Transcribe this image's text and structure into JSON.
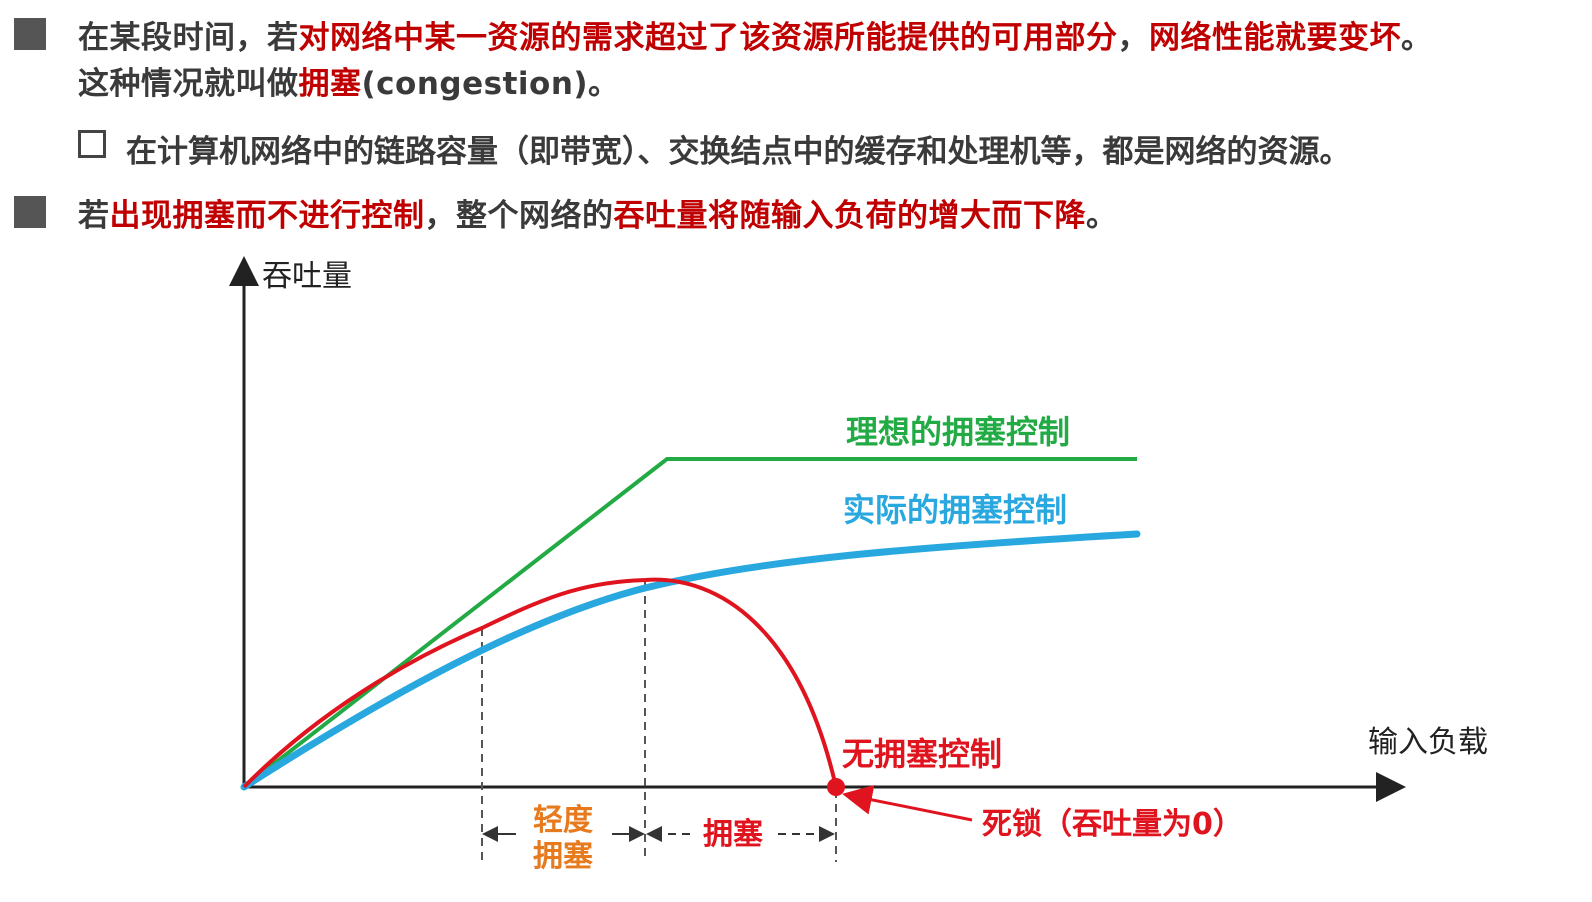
{
  "bullets": [
    {
      "segments": [
        {
          "text": "在某段时间，若",
          "red": false
        },
        {
          "text": "对网络中某一资源的需求超过了该资源所能提供的可用部分",
          "red": true
        },
        {
          "text": "，",
          "red": false
        },
        {
          "text": "网络性能就要变坏",
          "red": true
        },
        {
          "text": "。",
          "red": false
        }
      ],
      "line2": [
        {
          "text": "这种情况就叫做",
          "red": false
        },
        {
          "text": "拥塞",
          "red": true
        },
        {
          "text": "(congestion)。",
          "red": false
        }
      ]
    },
    {
      "segments": [
        {
          "text": "若",
          "red": false
        },
        {
          "text": "出现拥塞而不进行控制",
          "red": true
        },
        {
          "text": "，整个网络的",
          "red": false
        },
        {
          "text": "吞吐量将随输入负荷的增大而下降",
          "red": true
        },
        {
          "text": "。",
          "red": false
        }
      ]
    }
  ],
  "sub_bullet": "在计算机网络中的链路容量（即带宽）、交换结点中的缓存和处理机等，都是网络的资源。",
  "diagram": {
    "y_axis_label": "吞吐量",
    "x_axis_label": "输入负载",
    "curves": [
      {
        "name": "理想的拥塞控制",
        "color": "#22aa44"
      },
      {
        "name": "实际的拥塞控制",
        "color": "#29a8e0"
      },
      {
        "name": "无拥塞控制",
        "color": "#e0141e"
      }
    ],
    "regions": {
      "light_line1": "轻度",
      "light_line2": "拥塞",
      "congestion": "拥塞"
    },
    "deadlock_label": "死锁（吞吐量为0）",
    "colors": {
      "orange": "#e87a1e",
      "red": "#e0141e",
      "axis": "#222222"
    }
  }
}
